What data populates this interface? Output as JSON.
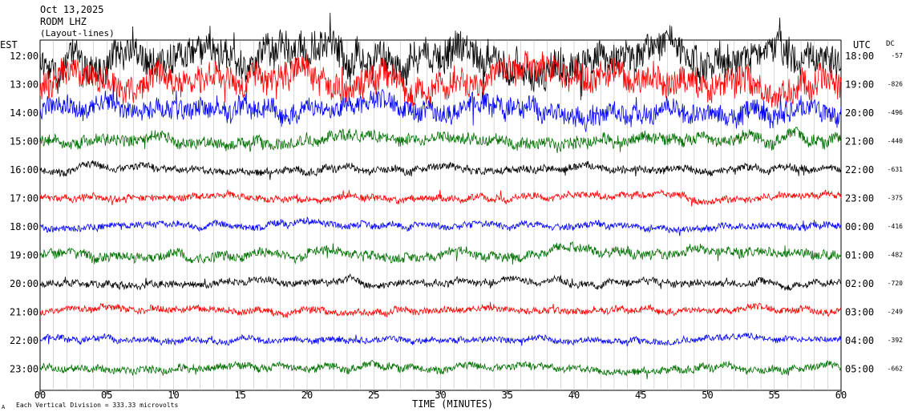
{
  "header": {
    "date": "Oct 13,2025",
    "station": "RODM LHZ",
    "network": "(Layout-lines)"
  },
  "chart_data": {
    "type": "line",
    "title": "",
    "left_axis_title": "EST",
    "right_axis_title": "UTC",
    "dc_title": "DC",
    "xlabel": "TIME (MINUTES)",
    "xlim": [
      0,
      60
    ],
    "x_ticks": [
      "00",
      "05",
      "10",
      "15",
      "20",
      "25",
      "30",
      "35",
      "40",
      "45",
      "50",
      "55",
      "60"
    ],
    "footer_note": "Each Vertical Division = 333.33 microvolts",
    "corner_mark": "A",
    "line_colors": [
      "#000000",
      "#ff0000",
      "#0000ff",
      "#007000"
    ],
    "rows": [
      {
        "est": "12:00",
        "utc": "18:00",
        "dc": "-57",
        "color": "#000000",
        "amplitude": 1.0
      },
      {
        "est": "13:00",
        "utc": "19:00",
        "dc": "-826",
        "color": "#ff0000",
        "amplitude": 0.85
      },
      {
        "est": "14:00",
        "utc": "20:00",
        "dc": "-496",
        "color": "#0000ff",
        "amplitude": 0.6
      },
      {
        "est": "15:00",
        "utc": "21:00",
        "dc": "-440",
        "color": "#007000",
        "amplitude": 0.35
      },
      {
        "est": "16:00",
        "utc": "22:00",
        "dc": "-631",
        "color": "#000000",
        "amplitude": 0.22
      },
      {
        "est": "17:00",
        "utc": "23:00",
        "dc": "-375",
        "color": "#ff0000",
        "amplitude": 0.2
      },
      {
        "est": "18:00",
        "utc": "00:00",
        "dc": "-416",
        "color": "#0000ff",
        "amplitude": 0.2
      },
      {
        "est": "19:00",
        "utc": "01:00",
        "dc": "-482",
        "color": "#007000",
        "amplitude": 0.28
      },
      {
        "est": "20:00",
        "utc": "02:00",
        "dc": "-720",
        "color": "#000000",
        "amplitude": 0.2
      },
      {
        "est": "21:00",
        "utc": "03:00",
        "dc": "-249",
        "color": "#ff0000",
        "amplitude": 0.2
      },
      {
        "est": "22:00",
        "utc": "04:00",
        "dc": "-392",
        "color": "#0000ff",
        "amplitude": 0.18
      },
      {
        "est": "23:00",
        "utc": "05:00",
        "dc": "-662",
        "color": "#007000",
        "amplitude": 0.22
      }
    ]
  }
}
